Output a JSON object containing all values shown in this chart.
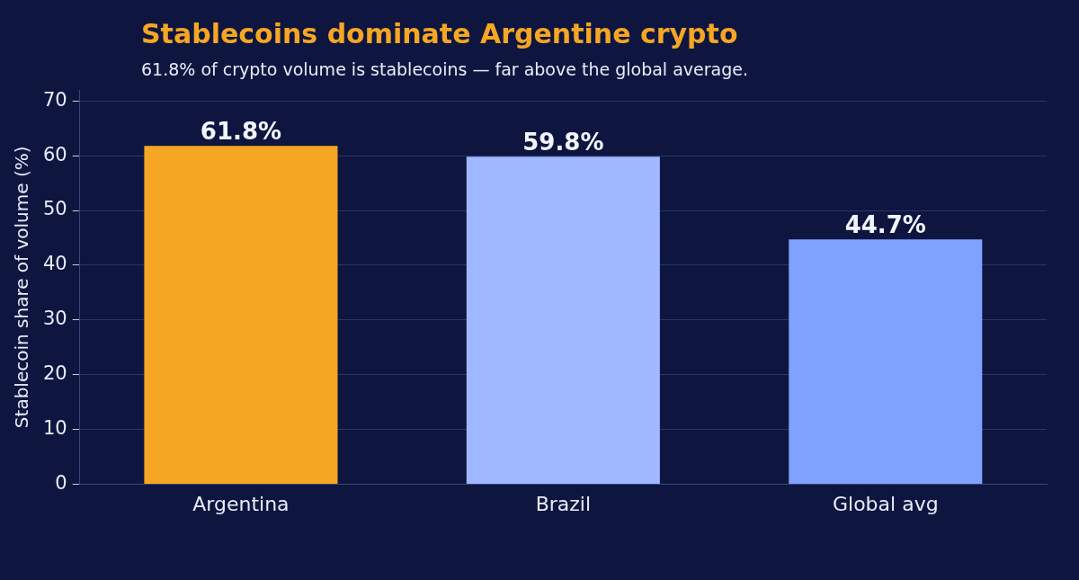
{
  "chart_data": {
    "type": "bar",
    "title": "Stablecoins dominate Argentine crypto",
    "subtitle": "61.8% of crypto volume is stablecoins — far above the global average.",
    "ylabel": "Stablecoin share of volume (%)",
    "categories": [
      "Argentina",
      "Brazil",
      "Global avg"
    ],
    "values": [
      61.8,
      59.8,
      44.7
    ],
    "colors": [
      "#f5a623",
      "#a0b8ff",
      "#7fa2ff"
    ],
    "value_labels": [
      "61.8%",
      "59.8%",
      "44.7%"
    ],
    "ylim": [
      0,
      72
    ],
    "yticks": [
      0,
      10,
      20,
      30,
      40,
      50,
      60,
      70
    ],
    "grid": "y",
    "legend": false
  }
}
